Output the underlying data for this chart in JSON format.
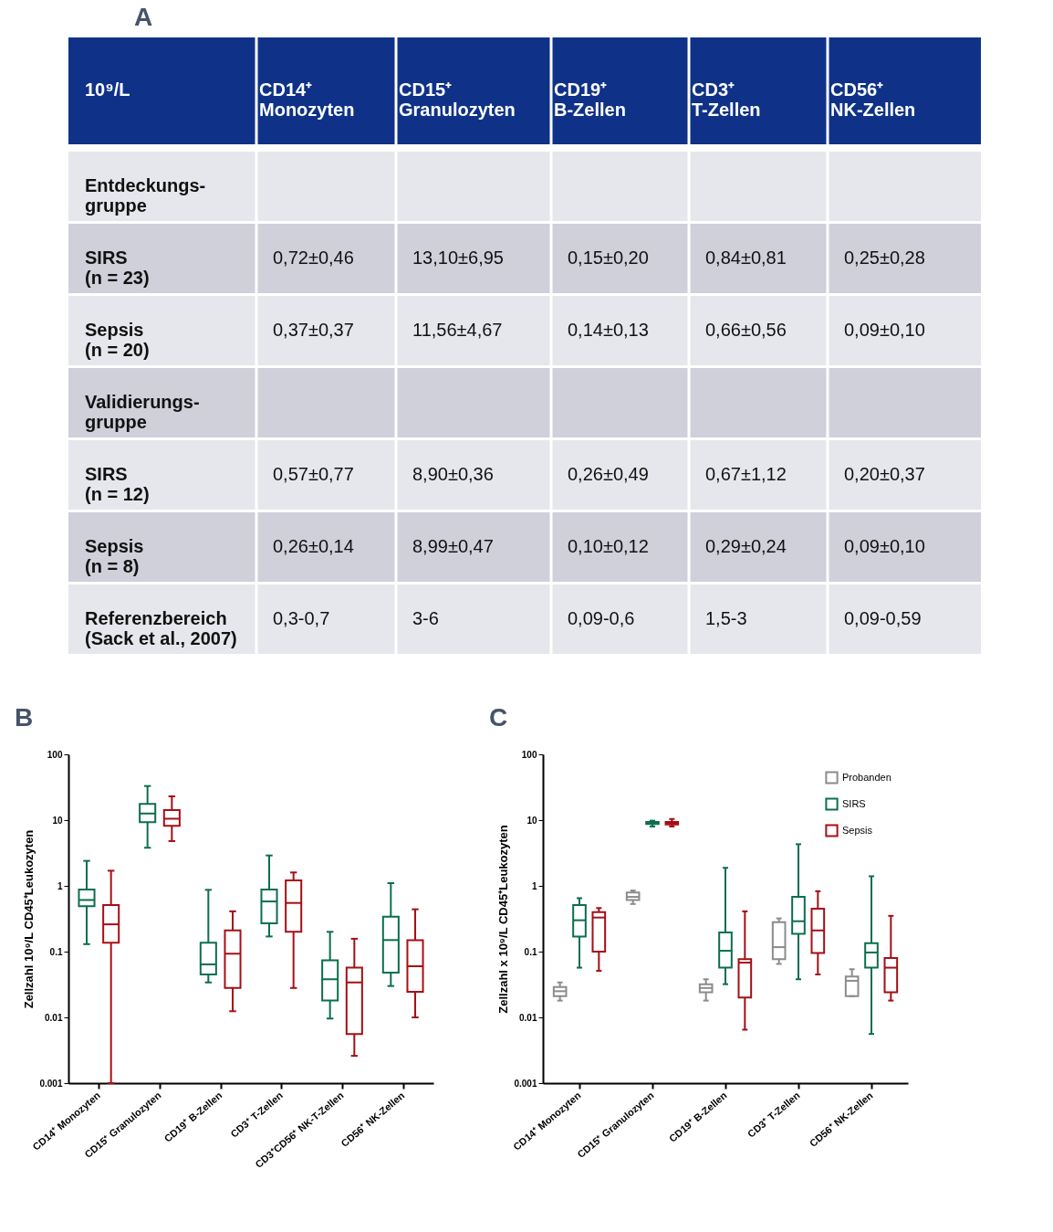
{
  "chart_data": [
    {
      "type": "other",
      "title": "A",
      "ylabel": "10⁹/L",
      "categories": [
        "CD14⁺\nMonozyten",
        "CD15⁺\nGranulozyten",
        "CD19⁺\nB-Zellen",
        "CD3⁺\nT-Zellen",
        "CD56⁺\nNK-Zellen"
      ],
      "y_categories": [
        "Entdeckungs-\ngruppe",
        "SIRS\n(n = 23)",
        "Sepsis\n(n = 20)",
        "Validierungs-\ngruppe",
        "SIRS\n(n = 12)",
        "Sepsis\n(n = 8)",
        "Referenzbereich\n(Sack et al., 2007)"
      ],
      "cell_labels": [
        [
          null,
          null,
          null,
          null,
          null
        ],
        [
          "0,72±0,46",
          "13,10±6,95",
          "0,15±0,20",
          "0,84±0,81",
          "0,25±0,28"
        ],
        [
          "0,37±0,37",
          "11,56±4,67",
          "0,14±0,13",
          "0,66±0,56",
          "0,09±0,10"
        ],
        [
          null,
          null,
          null,
          null,
          null
        ],
        [
          "0,57±0,77",
          "8,90±0,36",
          "0,26±0,49",
          "0,67±1,12",
          "0,20±0,37"
        ],
        [
          "0,26±0,14",
          "8,99±0,47",
          "0,10±0,12",
          "0,29±0,24",
          "0,09±0,10"
        ],
        [
          "0,3-0,7",
          "3-6",
          "0,09-0,6",
          "1,5-3",
          "0,09-0,59"
        ]
      ]
    },
    {
      "type": "box",
      "title": "B",
      "ylabel": "Zellzahl 10⁹/L CD45⁺Leukozyten",
      "log": true,
      "ylim": [
        0.001,
        100
      ],
      "yticks": [
        0.001,
        0.01,
        0.1,
        1,
        10,
        100
      ],
      "categories": [
        "CD14⁺ Monozyten",
        "CD15⁺ Granulozyten",
        "CD19⁺ B-Zellen",
        "CD3⁺ T-Zellen",
        "CD3⁺CD56⁺ NK-T-Zellen",
        "CD56⁺ NK-Zellen"
      ],
      "series": [
        {
          "color": "#0b6e4f",
          "boxes": [
            {
              "low": 0.13,
              "q1": 0.49,
              "median": 0.61,
              "q3": 0.88,
              "high": 2.4
            },
            {
              "low": 3.8,
              "q1": 9.3,
              "median": 12.6,
              "q3": 17.6,
              "high": 33
            },
            {
              "low": 0.034,
              "q1": 0.045,
              "median": 0.064,
              "q3": 0.137,
              "high": 0.87
            },
            {
              "low": 0.17,
              "q1": 0.27,
              "median": 0.58,
              "q3": 0.88,
              "high": 2.9
            },
            {
              "low": 0.0096,
              "q1": 0.018,
              "median": 0.038,
              "q3": 0.074,
              "high": 0.2
            },
            {
              "low": 0.03,
              "q1": 0.048,
              "median": 0.15,
              "q3": 0.34,
              "high": 1.1
            }
          ]
        },
        {
          "color": "#a50f15",
          "boxes": [
            {
              "low": 0.001,
              "q1": 0.137,
              "median": 0.26,
              "q3": 0.51,
              "high": 1.7
            },
            {
              "low": 4.8,
              "q1": 8.2,
              "median": 10.5,
              "q3": 14.2,
              "high": 23
            },
            {
              "low": 0.0124,
              "q1": 0.028,
              "median": 0.093,
              "q3": 0.21,
              "high": 0.41
            },
            {
              "low": 0.028,
              "q1": 0.2,
              "median": 0.55,
              "q3": 1.21,
              "high": 1.6
            },
            {
              "low": 0.0026,
              "q1": 0.0056,
              "median": 0.034,
              "q3": 0.057,
              "high": 0.157
            },
            {
              "low": 0.01,
              "q1": 0.0245,
              "median": 0.06,
              "q3": 0.149,
              "high": 0.44
            }
          ]
        }
      ]
    },
    {
      "type": "box",
      "title": "C",
      "ylabel": "Zellzahl x 10⁹/L CD45⁺Leukozyten",
      "log": true,
      "ylim": [
        0.001,
        100
      ],
      "yticks": [
        0.001,
        0.01,
        0.1,
        1,
        10,
        100
      ],
      "legend": "top right",
      "categories": [
        "CD14⁺ Monozyten",
        "CD15⁺ Granulozyten",
        "CD19⁺ B-Zellen",
        "CD3⁺ T-Zellen",
        "CD56⁺ NK-Zellen"
      ],
      "series": [
        {
          "name": "Probanden",
          "color": "#8c8c8c",
          "boxes": [
            {
              "low": 0.018,
              "q1": 0.021,
              "median": 0.025,
              "q3": 0.029,
              "high": 0.034
            },
            {
              "low": 0.53,
              "q1": 0.61,
              "median": 0.68,
              "q3": 0.79,
              "high": 0.85
            },
            {
              "low": 0.018,
              "q1": 0.024,
              "median": 0.028,
              "q3": 0.032,
              "high": 0.038
            },
            {
              "low": 0.065,
              "q1": 0.077,
              "median": 0.117,
              "q3": 0.28,
              "high": 0.32
            },
            {
              "low": 0.021,
              "q1": 0.021,
              "median": 0.036,
              "q3": 0.042,
              "high": 0.054
            }
          ]
        },
        {
          "name": "SIRS",
          "color": "#0b6e4f",
          "boxes": [
            {
              "low": 0.057,
              "q1": 0.17,
              "median": 0.3,
              "q3": 0.51,
              "high": 0.65
            },
            {
              "low": 8.0,
              "q1": 8.7,
              "median": 9.1,
              "q3": 9.4,
              "high": 9.8
            },
            {
              "low": 0.032,
              "q1": 0.057,
              "median": 0.103,
              "q3": 0.196,
              "high": 1.88
            },
            {
              "low": 0.038,
              "q1": 0.186,
              "median": 0.29,
              "q3": 0.68,
              "high": 4.3
            },
            {
              "low": 0.0056,
              "q1": 0.057,
              "median": 0.097,
              "q3": 0.134,
              "high": 1.4
            }
          ]
        },
        {
          "name": "Sepsis",
          "color": "#a50f15",
          "boxes": [
            {
              "low": 0.051,
              "q1": 0.1,
              "median": 0.33,
              "q3": 0.4,
              "high": 0.46
            },
            {
              "low": 8.0,
              "q1": 8.6,
              "median": 8.9,
              "q3": 9.4,
              "high": 10.4
            },
            {
              "low": 0.0065,
              "q1": 0.02,
              "median": 0.068,
              "q3": 0.077,
              "high": 0.41
            },
            {
              "low": 0.045,
              "q1": 0.095,
              "median": 0.21,
              "q3": 0.45,
              "high": 0.83
            },
            {
              "low": 0.018,
              "q1": 0.024,
              "median": 0.057,
              "q3": 0.08,
              "high": 0.35
            }
          ]
        }
      ]
    }
  ]
}
